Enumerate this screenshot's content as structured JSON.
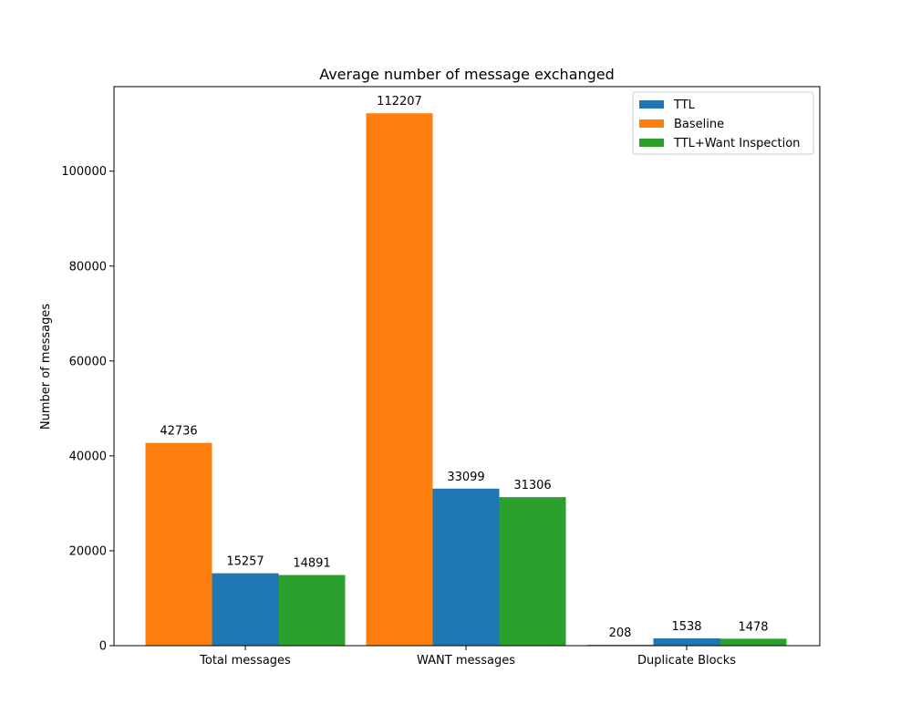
{
  "chart_data": {
    "type": "bar",
    "title": "Average number of message exchanged",
    "xlabel": "",
    "ylabel": "Number of messages",
    "categories": [
      "Total messages",
      "WANT messages",
      "Duplicate Blocks"
    ],
    "series": [
      {
        "name": "Baseline",
        "color": "#ff7f0e",
        "values": [
          42736,
          112207,
          208
        ]
      },
      {
        "name": "TTL",
        "color": "#1f77b4",
        "values": [
          15257,
          33099,
          1538
        ]
      },
      {
        "name": "TTL+Want Inspection",
        "color": "#2ca02c",
        "values": [
          14891,
          31306,
          1478
        ]
      }
    ],
    "legend_order": [
      "TTL",
      "Baseline",
      "TTL+Want Inspection"
    ],
    "legend_position": "top-right",
    "yticks": [
      0,
      20000,
      40000,
      60000,
      80000,
      100000
    ],
    "ylim": [
      0,
      117817
    ],
    "grid": false,
    "data_labels": true
  }
}
